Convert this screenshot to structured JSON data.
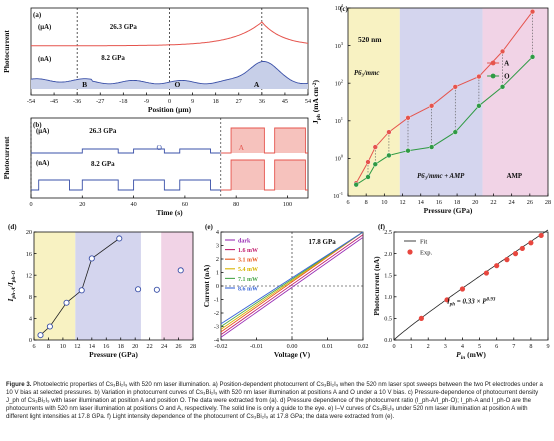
{
  "panel_a": {
    "letter": "(a)",
    "ylabel": "Photocurrent",
    "xlabel": "Position (μm)",
    "upper_unit": "(μA)",
    "lower_unit": "(nA)",
    "upper_pressure": "26.3 GPa",
    "lower_pressure": "8.2 GPa",
    "point_labels": [
      "B",
      "O",
      "A"
    ],
    "x_ticks": [
      "-54",
      "-45",
      "-36",
      "-27",
      "-18",
      "-9",
      "0",
      "9",
      "18",
      "27",
      "36",
      "45",
      "54"
    ],
    "colors": {
      "upper": "#e5544d",
      "lower": "#3a50a8"
    }
  },
  "panel_b": {
    "letter": "(b)",
    "ylabel": "Photocurrent",
    "xlabel": "Time (s)",
    "upper_unit": "(μA)",
    "lower_unit": "(nA)",
    "upper_pressure": "26.3 GPa",
    "lower_pressure": "8.2 GPa",
    "label_O": "O",
    "label_A": "A",
    "x_ticks": [
      "0",
      "20",
      "40",
      "60",
      "80",
      "100"
    ]
  },
  "panel_c": {
    "letter": "(c)",
    "ylabel": "J",
    "ylabel_sub": "ph",
    "ylabel_unit": "(mA cm",
    "ylabel_sup": "-2",
    "ylabel_close": ")",
    "xlabel": "Pressure (GPa)",
    "wavelength": "520 nm",
    "phase1": "P6₃/mmc",
    "phase2": "P6₃/mmc + AMP",
    "phase3": "AMP",
    "legend": [
      "A",
      "O"
    ],
    "x_ticks": [
      "6",
      "8",
      "10",
      "12",
      "14",
      "16",
      "18",
      "20",
      "22",
      "24",
      "26",
      "28"
    ],
    "y_ticks": [
      "10",
      "10",
      "10",
      "10",
      "10",
      "10"
    ],
    "y_exps": [
      "-1",
      "0",
      "1",
      "2",
      "3",
      "4"
    ],
    "regions": {
      "yellow": "#f8f2c2",
      "blue": "#d4d5ee",
      "pink": "#f1d3e6"
    }
  },
  "panel_d": {
    "letter": "(d)",
    "ylabel": "I",
    "ylabel_sub1": "ph-A",
    "ylabel_mid": "/I",
    "ylabel_sub2": "ph-O",
    "xlabel": "Pressure (GPa)",
    "x_ticks": [
      "6",
      "8",
      "10",
      "12",
      "14",
      "16",
      "18",
      "20",
      "22",
      "24",
      "26",
      "28"
    ],
    "y_ticks": [
      "0",
      "4",
      "8",
      "12",
      "16",
      "20"
    ]
  },
  "panel_e": {
    "letter": "(e)",
    "ylabel": "Current (nA)",
    "xlabel": "Voltage (V)",
    "pressure": "17.8 GPa",
    "legend": [
      "dark",
      "1.6 mW",
      "3.1 mW",
      "5.4 mW",
      "7.1 mW",
      "8.6 mW"
    ],
    "legend_colors": [
      "#9a2fb5",
      "#c2206f",
      "#e8571b",
      "#d7b400",
      "#4aa64a",
      "#3a66d8"
    ],
    "x_ticks": [
      "-0.02",
      "-0.01",
      "0.00",
      "0.01",
      "0.02"
    ],
    "y_ticks": [
      "-4",
      "-3",
      "-2",
      "-1",
      "0",
      "1",
      "2",
      "3",
      "4"
    ]
  },
  "panel_f": {
    "letter": "(f)",
    "ylabel": "Photocurrent (nA)",
    "xlabel": "P",
    "xlabel_sub": "in",
    "xlabel_unit": " (mW)",
    "legend_fit": "Fit",
    "legend_exp": "Exp.",
    "equation": "I",
    "equation_sub": "ph",
    "equation_mid": " = 0.33 × P",
    "equation_sup": "0.93",
    "x_ticks": [
      "0",
      "1",
      "2",
      "3",
      "4",
      "5",
      "6",
      "7",
      "8",
      "9"
    ],
    "y_ticks": [
      "0.0",
      "0.5",
      "1.0",
      "1.5",
      "2.0",
      "2.5"
    ]
  },
  "caption": {
    "label": "Figure 3.",
    "text": " Photoelectric properties of Cs₃Bi₂I₉ with 520 nm laser illumination. a) Position-dependent photocurrent of Cs₃Bi₂I₉ when the 520 nm laser spot sweeps between the two Pt electrodes under a 10 V bias at selected pressures. b) Variation in photocurrent curves of Cs₃Bi₂I₉ with 520 nm laser illumination at positions A and O under a 10 V bias. c) Pressure-dependence of photocurrent density J_ph of Cs₃Bi₂I₉ with laser illumination at position A and position O. The data were extracted from (a). d) Pressure dependence of the photocurrent ratio (I_ph-A/I_ph-O); I_ph-A and I_ph-O are the photocurrents with 520 nm laser illumination at positions O and A, respectively. The solid line is only a guide to the eye. e) I–V curves of Cs₃Bi₂I₉ under 520 nm laser illumination at position A with different light intensities at 17.8 GPa. f) Light intensity dependence of the photocurrent of Cs₃Bi₂I₉ at 17.8 GPa; the data were extracted from (e)."
  },
  "chart_data": [
    {
      "panel": "a",
      "type": "line",
      "xlabel": "Position (μm)",
      "ylabel": "Photocurrent",
      "xlim": [
        -54,
        54
      ],
      "series": [
        {
          "name": "26.3 GPa",
          "x": [
            -54,
            -36,
            -18,
            -9,
            0,
            9,
            18,
            27,
            30,
            33,
            36,
            39,
            42,
            45,
            54
          ],
          "values": [
            0.05,
            0.07,
            0.1,
            0.13,
            0.17,
            0.22,
            0.3,
            0.48,
            0.62,
            0.8,
            1.0,
            0.78,
            0.52,
            0.38,
            0.25
          ]
        },
        {
          "name": "8.2 GPa",
          "x": [
            -54,
            -36,
            -18,
            -9,
            0,
            9,
            18,
            27,
            30,
            33,
            36,
            39,
            42,
            45,
            54
          ],
          "values": [
            0.32,
            0.38,
            0.34,
            0.3,
            0.32,
            0.36,
            0.38,
            0.5,
            0.62,
            0.8,
            0.95,
            0.72,
            0.55,
            0.45,
            0.4
          ]
        }
      ]
    },
    {
      "panel": "b",
      "type": "line",
      "xlabel": "Time (s)",
      "ylabel": "Photocurrent",
      "xlim": [
        0,
        108
      ],
      "series": [
        {
          "name": "26.3 GPa O",
          "on_intervals": [
            [
              20,
              34
            ],
            [
              40,
              52
            ],
            [
              58,
              70
            ]
          ]
        },
        {
          "name": "26.3 GPa A",
          "on_intervals": [
            [
              78,
              91
            ],
            [
              95,
              107
            ]
          ]
        },
        {
          "name": "8.2 GPa O",
          "on_intervals": [
            [
              3,
              15
            ],
            [
              20,
              34
            ],
            [
              40,
              52
            ],
            [
              58,
              70
            ]
          ]
        },
        {
          "name": "8.2 GPa A",
          "on_intervals": [
            [
              78,
              91
            ],
            [
              95,
              107
            ]
          ]
        }
      ]
    },
    {
      "panel": "c",
      "type": "line",
      "xlabel": "Pressure (GPa)",
      "ylabel": "J_ph (mA cm-2)",
      "xlim": [
        6,
        28
      ],
      "ylim": [
        0.1,
        10000
      ],
      "yscale": "log",
      "series": [
        {
          "name": "A",
          "x": [
            6.9,
            8.2,
            9.0,
            10.5,
            12.6,
            15.2,
            17.8,
            20.4,
            23.0,
            26.3
          ],
          "values": [
            0.22,
            0.8,
            2.0,
            5.0,
            12,
            25,
            80,
            150,
            700,
            8000
          ]
        },
        {
          "name": "O",
          "x": [
            6.9,
            8.2,
            9.0,
            10.5,
            12.6,
            15.2,
            17.8,
            20.4,
            23.0,
            26.3
          ],
          "values": [
            0.2,
            0.32,
            0.7,
            1.2,
            1.6,
            2.0,
            5.0,
            25,
            80,
            500
          ]
        }
      ]
    },
    {
      "panel": "d",
      "type": "scatter",
      "xlabel": "Pressure (GPa)",
      "ylabel": "I_ph-A / I_ph-O",
      "xlim": [
        6,
        28
      ],
      "ylim": [
        0,
        20
      ],
      "x": [
        6.9,
        8.2,
        10.5,
        12.6,
        14.0,
        17.8,
        20.4,
        23.0,
        26.3
      ],
      "values": [
        0.9,
        2.5,
        6.9,
        9.2,
        15.1,
        18.8,
        9.4,
        9.3,
        12.9
      ]
    },
    {
      "panel": "e",
      "type": "line",
      "xlabel": "Voltage (V)",
      "ylabel": "Current (nA)",
      "xlim": [
        -0.02,
        0.02
      ],
      "ylim": [
        -4,
        4
      ],
      "series": [
        {
          "name": "dark",
          "x": [
            -0.02,
            0.02
          ],
          "values": [
            -3.8,
            3.6
          ]
        },
        {
          "name": "1.6 mW",
          "x": [
            -0.02,
            0.02
          ],
          "values": [
            -3.6,
            3.8
          ]
        },
        {
          "name": "3.1 mW",
          "x": [
            -0.02,
            0.02
          ],
          "values": [
            -3.4,
            4.0
          ]
        },
        {
          "name": "5.4 mW",
          "x": [
            -0.02,
            0.02
          ],
          "values": [
            -3.2,
            4.2
          ]
        },
        {
          "name": "7.1 mW",
          "x": [
            -0.02,
            0.02
          ],
          "values": [
            -3.0,
            4.3
          ]
        },
        {
          "name": "8.6 mW",
          "x": [
            -0.02,
            0.02
          ],
          "values": [
            -2.8,
            4.4
          ]
        }
      ]
    },
    {
      "panel": "f",
      "type": "scatter",
      "xlabel": "P_in (mW)",
      "ylabel": "Photocurrent (nA)",
      "xlim": [
        0,
        9
      ],
      "ylim": [
        0,
        2.5
      ],
      "x": [
        1.6,
        3.1,
        4.0,
        5.4,
        6.0,
        6.6,
        7.1,
        7.5,
        8.0,
        8.6
      ],
      "values": [
        0.5,
        0.93,
        1.18,
        1.55,
        1.72,
        1.86,
        2.0,
        2.12,
        2.25,
        2.42
      ],
      "fit": {
        "coefficient": 0.33,
        "exponent": 0.93
      }
    }
  ]
}
